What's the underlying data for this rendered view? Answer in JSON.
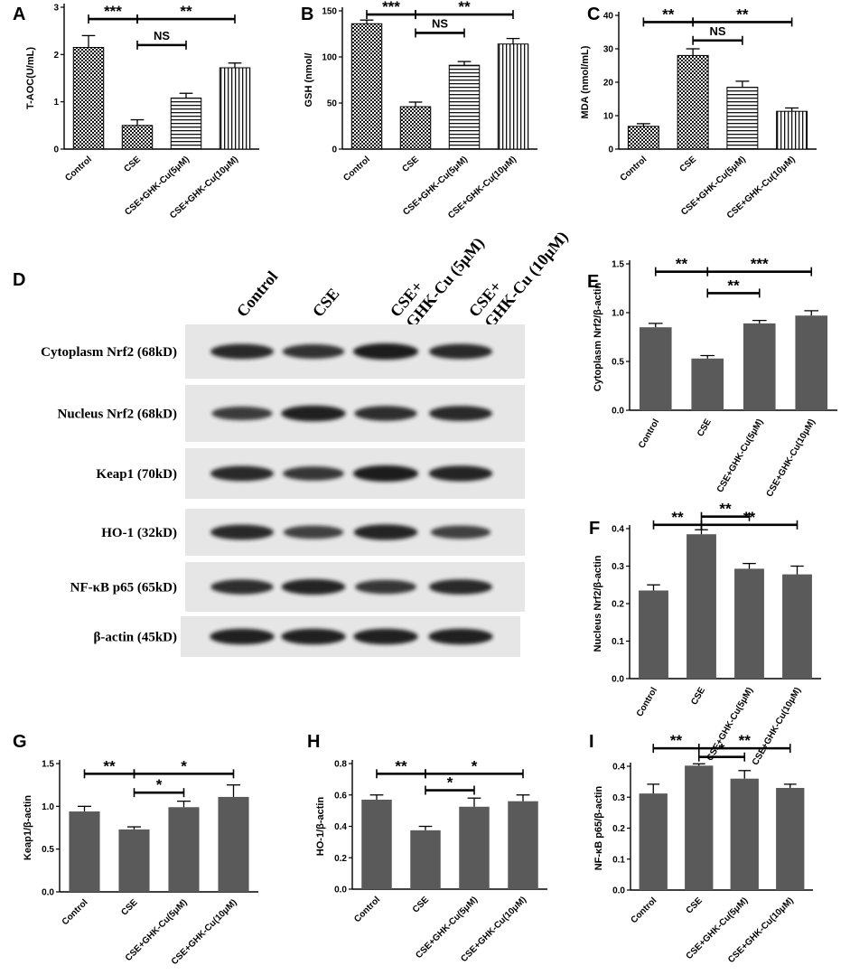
{
  "colors": {
    "gray_bar": "#5a5a5a",
    "black": "#000000",
    "blot_bg": "#e6e6e6",
    "band": "#1a1a1a"
  },
  "chart_data": [
    {
      "panel": "A",
      "type": "bar",
      "categories": [
        "Control",
        "CSE",
        "CSE+GHK-Cu(5μM)",
        "CSE+GHK-Cu(10μM)"
      ],
      "values": [
        2.15,
        0.5,
        1.08,
        1.72
      ],
      "errors": [
        0.25,
        0.12,
        0.1,
        0.1
      ],
      "fills": [
        "checker",
        "checker",
        "hstripe",
        "vstripe"
      ],
      "ylabel": "T-AOC(U/mL)",
      "ylim": [
        0,
        3
      ],
      "yticks": [
        0,
        1,
        2,
        3
      ],
      "significance": [
        {
          "from": 0,
          "to": 1,
          "label": "***",
          "level": 2.75
        },
        {
          "from": 1,
          "to": 3,
          "label": "**",
          "level": 2.75
        },
        {
          "from": 1,
          "to": 2,
          "label": "NS",
          "level": 2.2
        }
      ]
    },
    {
      "panel": "B",
      "type": "bar",
      "categories": [
        "Control",
        "CSE",
        "CSE+GHK-Cu(5μM)",
        "CSE+GHK-Cu(10μM)"
      ],
      "values": [
        136,
        46,
        91,
        114
      ],
      "errors": [
        4,
        5,
        4,
        6
      ],
      "fills": [
        "checker",
        "checker",
        "hstripe",
        "vstripe"
      ],
      "ylabel": "GSH (nmol/",
      "ylim": [
        0,
        150
      ],
      "yticks": [
        0,
        50,
        100,
        150
      ],
      "significance": [
        {
          "from": 0,
          "to": 1,
          "label": "***",
          "level": 146
        },
        {
          "from": 1,
          "to": 3,
          "label": "**",
          "level": 146
        },
        {
          "from": 1,
          "to": 2,
          "label": "NS",
          "level": 126
        }
      ]
    },
    {
      "panel": "C",
      "type": "bar",
      "categories": [
        "Control",
        "CSE",
        "CSE+GHK-Cu(5μM)",
        "CSE+GHK-Cu(10μM)"
      ],
      "values": [
        6.8,
        28,
        18.5,
        11.3
      ],
      "errors": [
        0.8,
        2,
        1.8,
        1
      ],
      "fills": [
        "checker",
        "checker",
        "hstripe",
        "vstripe"
      ],
      "ylabel": "MDA (nmol/mL)",
      "ylim": [
        0,
        40
      ],
      "yticks": [
        0,
        10,
        20,
        30,
        40
      ],
      "significance": [
        {
          "from": 0,
          "to": 1,
          "label": "**",
          "level": 38
        },
        {
          "from": 1,
          "to": 3,
          "label": "**",
          "level": 38
        },
        {
          "from": 1,
          "to": 2,
          "label": "NS",
          "level": 32.5
        }
      ]
    },
    {
      "panel": "E",
      "type": "bar",
      "categories": [
        "Control",
        "CSE",
        "CSE+GHK-Cu(5μM)",
        "CSE+GHK-Cu(10μM)"
      ],
      "values": [
        0.85,
        0.53,
        0.89,
        0.97
      ],
      "errors": [
        0.04,
        0.03,
        0.03,
        0.05
      ],
      "fills": [
        "gray",
        "gray",
        "gray",
        "gray"
      ],
      "ylabel": "Cytoplasm Nrf2/β-actin",
      "ylim": [
        0,
        1.5
      ],
      "yticks": [
        0.0,
        0.5,
        1.0,
        1.5
      ],
      "significance": [
        {
          "from": 0,
          "to": 1,
          "label": "**",
          "level": 1.42
        },
        {
          "from": 1,
          "to": 3,
          "label": "***",
          "level": 1.42
        },
        {
          "from": 1,
          "to": 2,
          "label": "**",
          "level": 1.2
        }
      ]
    },
    {
      "panel": "F",
      "type": "bar",
      "categories": [
        "Control",
        "CSE",
        "CSE+GHK-Cu(5μM)",
        "CSE+GHK-Cu(10μM)"
      ],
      "values": [
        0.235,
        0.385,
        0.293,
        0.278
      ],
      "errors": [
        0.015,
        0.012,
        0.014,
        0.022
      ],
      "fills": [
        "gray",
        "gray",
        "gray",
        "gray"
      ],
      "ylabel": "Nucleus Nrf2/β-actin",
      "ylim": [
        0,
        0.4
      ],
      "yticks": [
        0.0,
        0.1,
        0.2,
        0.3,
        0.4
      ],
      "significance": [
        {
          "from": 0,
          "to": 1,
          "label": "**",
          "level": 0.41
        },
        {
          "from": 1,
          "to": 2,
          "label": "**",
          "level": 0.432
        },
        {
          "from": 1,
          "to": 3,
          "label": "**",
          "level": 0.41
        }
      ]
    },
    {
      "panel": "G",
      "type": "bar",
      "categories": [
        "Control",
        "CSE",
        "CSE+GHK-Cu(5μM)",
        "CSE+GHK-Cu(10μM)"
      ],
      "values": [
        0.94,
        0.73,
        0.99,
        1.11
      ],
      "errors": [
        0.06,
        0.03,
        0.07,
        0.14
      ],
      "fills": [
        "gray",
        "gray",
        "gray",
        "gray"
      ],
      "ylabel": "Keap1/β-actin",
      "ylim": [
        0,
        1.5
      ],
      "yticks": [
        0.0,
        0.5,
        1.0,
        1.5
      ],
      "significance": [
        {
          "from": 0,
          "to": 1,
          "label": "**",
          "level": 1.38
        },
        {
          "from": 1,
          "to": 3,
          "label": "*",
          "level": 1.38
        },
        {
          "from": 1,
          "to": 2,
          "label": "*",
          "level": 1.16
        }
      ]
    },
    {
      "panel": "H",
      "type": "bar",
      "categories": [
        "Control",
        "CSE",
        "CSE+GHK-Cu(5μM)",
        "CSE+GHK-Cu(10μM)"
      ],
      "values": [
        0.57,
        0.375,
        0.525,
        0.56
      ],
      "errors": [
        0.03,
        0.025,
        0.055,
        0.04
      ],
      "fills": [
        "gray",
        "gray",
        "gray",
        "gray"
      ],
      "ylabel": "HO-1/β-actin",
      "ylim": [
        0,
        0.8
      ],
      "yticks": [
        0.0,
        0.2,
        0.4,
        0.6,
        0.8
      ],
      "significance": [
        {
          "from": 0,
          "to": 1,
          "label": "**",
          "level": 0.735
        },
        {
          "from": 1,
          "to": 3,
          "label": "*",
          "level": 0.735
        },
        {
          "from": 1,
          "to": 2,
          "label": "*",
          "level": 0.63
        }
      ]
    },
    {
      "panel": "I",
      "type": "bar",
      "categories": [
        "Control",
        "CSE",
        "CSE+GHK-Cu(5μM)",
        "CSE+GHK-Cu(10μM)"
      ],
      "values": [
        0.312,
        0.402,
        0.36,
        0.33
      ],
      "errors": [
        0.03,
        0.006,
        0.026,
        0.012
      ],
      "fills": [
        "gray",
        "gray",
        "gray",
        "gray"
      ],
      "ylabel": "NF-κB p65/β-actin",
      "ylim": [
        0,
        0.4
      ],
      "yticks": [
        0.0,
        0.1,
        0.2,
        0.3,
        0.4
      ],
      "significance": [
        {
          "from": 0,
          "to": 1,
          "label": "**",
          "level": 0.458
        },
        {
          "from": 1,
          "to": 3,
          "label": "**",
          "level": 0.458
        },
        {
          "from": 1,
          "to": 2,
          "label": "*",
          "level": 0.43
        }
      ]
    }
  ],
  "western_blot": {
    "panel": "D",
    "columns": [
      "Control",
      "CSE",
      "CSE+\nGHK-Cu (5μM)",
      "CSE+\nGHK-Cu (10μM)"
    ],
    "rows": [
      {
        "label": "Cytoplasm Nrf2 (68kD)",
        "intensities": [
          0.85,
          0.75,
          1.0,
          0.85
        ]
      },
      {
        "label": "Nucleus Nrf2 (68kD)",
        "intensities": [
          0.65,
          0.95,
          0.8,
          0.85
        ]
      },
      {
        "label": "Keap1 (70kD)",
        "intensities": [
          0.85,
          0.7,
          1.0,
          0.9
        ]
      },
      {
        "label": "HO-1 (32kD)",
        "intensities": [
          0.85,
          0.6,
          0.9,
          0.6
        ]
      },
      {
        "label": "NF-κB p65 (65kD)",
        "intensities": [
          0.8,
          0.9,
          0.7,
          0.85
        ]
      },
      {
        "label": "β-actin (45kD)",
        "intensities": [
          0.95,
          0.95,
          0.95,
          0.95
        ]
      }
    ]
  }
}
